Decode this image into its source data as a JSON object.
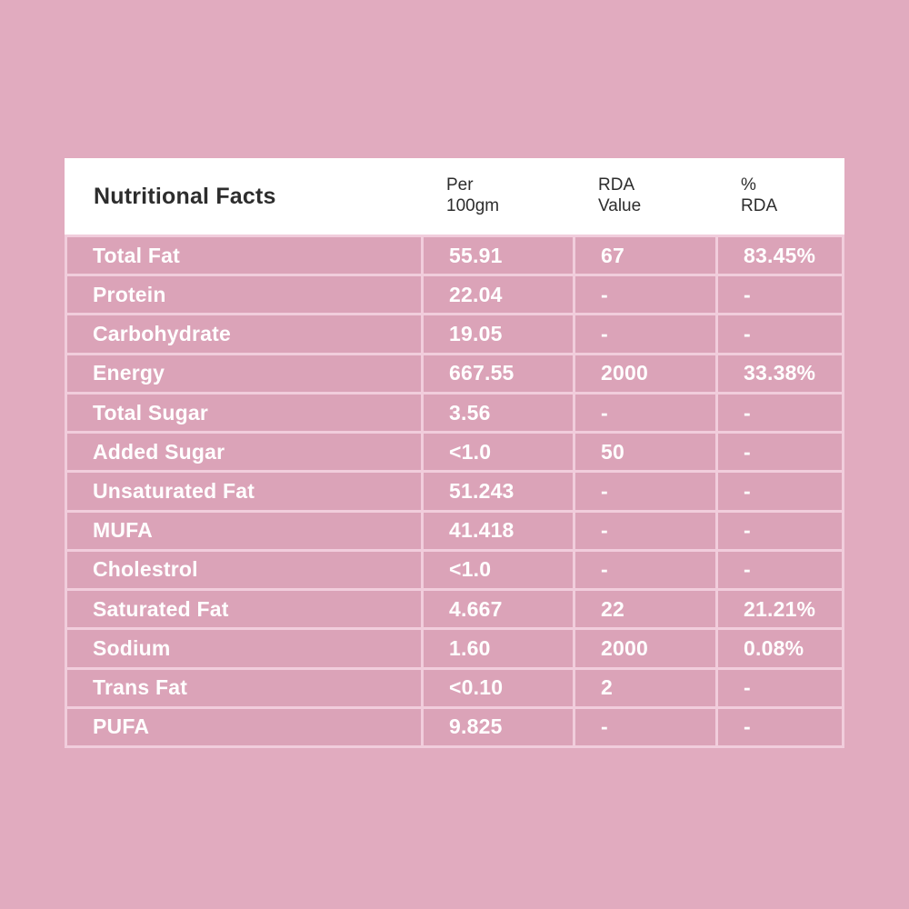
{
  "colors": {
    "bg": "#e1abbf",
    "cell": "#dba3b8",
    "divider": "#f1cddc",
    "header-bg": "#ffffff",
    "header-text": "#2d2d2d",
    "cell-text": "#ffffff"
  },
  "table": {
    "title": "Nutritional Facts",
    "columns": [
      {
        "label": "Per\n100gm"
      },
      {
        "label": "RDA\nValue"
      },
      {
        "label": "%\nRDA"
      }
    ],
    "rows": [
      {
        "label": "Total Fat",
        "per_100gm": "55.91",
        "rda_value": "67",
        "rda_percent": "83.45%"
      },
      {
        "label": "Protein",
        "per_100gm": "22.04",
        "rda_value": "-",
        "rda_percent": "-"
      },
      {
        "label": "Carbohydrate",
        "per_100gm": "19.05",
        "rda_value": "-",
        "rda_percent": "-"
      },
      {
        "label": "Energy",
        "per_100gm": "667.55",
        "rda_value": "2000",
        "rda_percent": "33.38%"
      },
      {
        "label": "Total Sugar",
        "per_100gm": "3.56",
        "rda_value": "-",
        "rda_percent": "-"
      },
      {
        "label": "Added Sugar",
        "per_100gm": "<1.0",
        "rda_value": "50",
        "rda_percent": "-"
      },
      {
        "label": "Unsaturated Fat",
        "per_100gm": "51.243",
        "rda_value": "-",
        "rda_percent": "-"
      },
      {
        "label": "MUFA",
        "per_100gm": "41.418",
        "rda_value": "-",
        "rda_percent": "-"
      },
      {
        "label": "Cholestrol",
        "per_100gm": "<1.0",
        "rda_value": "-",
        "rda_percent": "-"
      },
      {
        "label": "Saturated Fat",
        "per_100gm": "4.667",
        "rda_value": "22",
        "rda_percent": "21.21%"
      },
      {
        "label": "Sodium",
        "per_100gm": "1.60",
        "rda_value": "2000",
        "rda_percent": "0.08%"
      },
      {
        "label": "Trans Fat",
        "per_100gm": "<0.10",
        "rda_value": "2",
        "rda_percent": "-"
      },
      {
        "label": "PUFA",
        "per_100gm": "9.825",
        "rda_value": "-",
        "rda_percent": "-"
      }
    ]
  }
}
